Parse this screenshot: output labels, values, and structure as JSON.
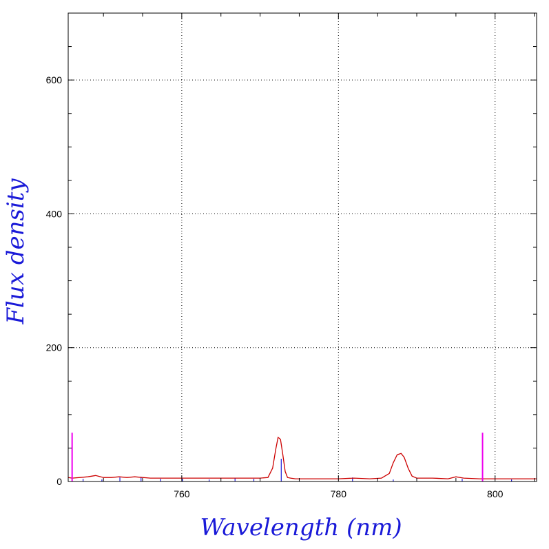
{
  "chart_data": {
    "type": "line",
    "title": "",
    "xlabel": "Wavelength (nm)",
    "ylabel": "Flux density",
    "xlim": [
      745.5,
      805.3
    ],
    "ylim": [
      0,
      700
    ],
    "x_ticks": [
      760,
      780,
      800
    ],
    "y_ticks": [
      0,
      200,
      400,
      600
    ],
    "x_tick_labels": [
      "760",
      "780",
      "800"
    ],
    "y_tick_labels": [
      "0",
      "200",
      "400",
      "600"
    ],
    "grid": true,
    "colors": {
      "spectrum": "#cc0000",
      "markers": "#ee00ee",
      "lines": "#1a1ad8",
      "axis_title": "#1a1ad8"
    },
    "series": [
      {
        "values_x": [
          745.5,
          746.0,
          747.0,
          748.0,
          749.0,
          750.0,
          751.0,
          752.0,
          753.0,
          754.0,
          755.0,
          756.0,
          757.0,
          758.0,
          759.0,
          760.0,
          762.0,
          764.0,
          766.0,
          768.0,
          770.0,
          771.0,
          771.6,
          772.0,
          772.3,
          772.6,
          772.9,
          773.2,
          773.5,
          773.9,
          774.5,
          776.0,
          778.0,
          780.0,
          782.0,
          784.0,
          785.5,
          786.5,
          787.0,
          787.5,
          788.0,
          788.4,
          788.9,
          789.4,
          790.0,
          792.0,
          794.0,
          795.0,
          796.0,
          798.0,
          800.0,
          802.0,
          804.0,
          805.3
        ],
        "values_y": [
          6,
          5,
          6,
          7,
          9,
          6,
          6,
          7,
          6,
          7,
          6,
          5,
          5,
          5,
          5,
          5,
          5,
          5,
          5,
          5,
          5,
          6,
          20,
          48,
          66,
          63,
          40,
          15,
          6,
          5,
          4,
          4,
          4,
          4,
          5,
          4,
          5,
          12,
          28,
          40,
          42,
          36,
          20,
          8,
          5,
          5,
          4,
          7,
          5,
          4,
          4,
          4,
          4,
          4
        ]
      }
    ],
    "reference_lines": [
      {
        "x": 746.0,
        "height": 73
      },
      {
        "x": 798.4,
        "height": 73
      }
    ],
    "line_ticks": [
      {
        "x": 747.4,
        "height": 4
      },
      {
        "x": 749.8,
        "height": 3
      },
      {
        "x": 752.1,
        "height": 6
      },
      {
        "x": 754.8,
        "height": 7
      },
      {
        "x": 757.3,
        "height": 4
      },
      {
        "x": 760.1,
        "height": 4
      },
      {
        "x": 763.5,
        "height": 3
      },
      {
        "x": 766.8,
        "height": 5
      },
      {
        "x": 769.2,
        "height": 4
      },
      {
        "x": 772.7,
        "height": 34
      },
      {
        "x": 781.8,
        "height": 6
      },
      {
        "x": 787.0,
        "height": 3
      },
      {
        "x": 795.8,
        "height": 4
      },
      {
        "x": 802.1,
        "height": 3
      }
    ]
  }
}
